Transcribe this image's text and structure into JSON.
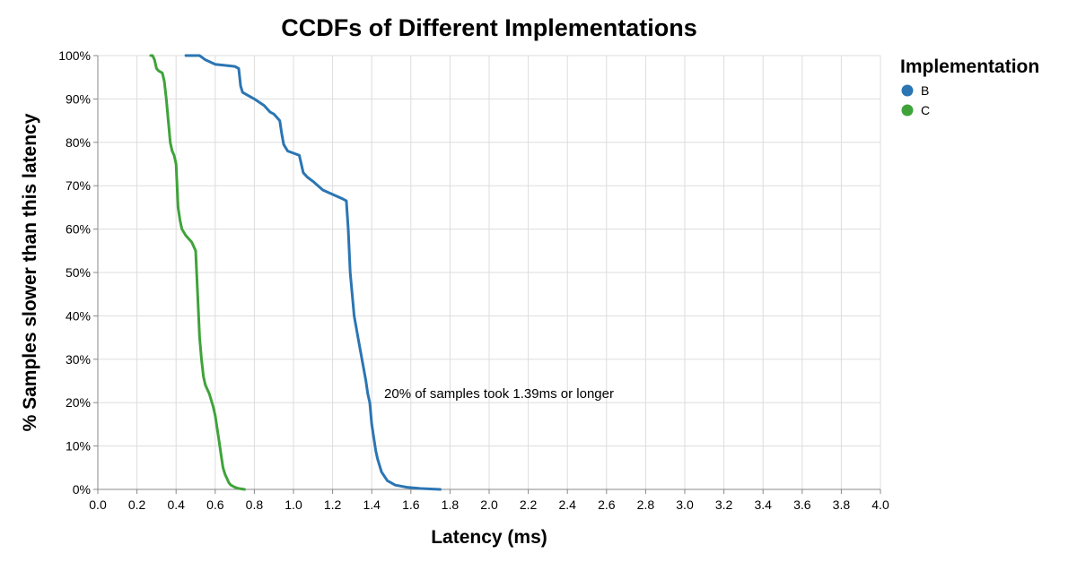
{
  "chart_data": {
    "type": "line",
    "title": "CCDFs of Different Implementations",
    "xlabel": "Latency (ms)",
    "ylabel": "% Samples slower than this latency",
    "xlim": [
      0,
      4.0
    ],
    "ylim": [
      0,
      100
    ],
    "x_ticks": [
      0.0,
      0.2,
      0.4,
      0.6,
      0.8,
      1.0,
      1.2,
      1.4,
      1.6,
      1.8,
      2.0,
      2.2,
      2.4,
      2.6,
      2.8,
      3.0,
      3.2,
      3.4,
      3.6,
      3.8,
      4.0
    ],
    "x_tick_labels": [
      "0.0",
      "0.2",
      "0.4",
      "0.6",
      "0.8",
      "1.0",
      "1.2",
      "1.4",
      "1.6",
      "1.8",
      "2.0",
      "2.2",
      "2.4",
      "2.6",
      "2.8",
      "3.0",
      "3.2",
      "3.4",
      "3.6",
      "3.8",
      "4.0"
    ],
    "y_ticks": [
      0,
      10,
      20,
      30,
      40,
      50,
      60,
      70,
      80,
      90,
      100
    ],
    "y_tick_labels": [
      "0%",
      "10%",
      "20%",
      "30%",
      "40%",
      "50%",
      "60%",
      "70%",
      "80%",
      "90%",
      "100%"
    ],
    "grid": true,
    "legend": {
      "title": "Implementation",
      "position": "right"
    },
    "annotations": [
      {
        "text": "20% of samples took 1.39ms or longer",
        "x": 1.39,
        "y": 20
      }
    ],
    "series": [
      {
        "name": "B",
        "color": "#2b75b3",
        "x": [
          0.45,
          0.48,
          0.52,
          0.55,
          0.6,
          0.7,
          0.72,
          0.73,
          0.74,
          0.76,
          0.8,
          0.85,
          0.88,
          0.9,
          0.91,
          0.93,
          0.94,
          0.95,
          0.97,
          1.0,
          1.03,
          1.04,
          1.05,
          1.07,
          1.1,
          1.15,
          1.2,
          1.25,
          1.27,
          1.28,
          1.29,
          1.3,
          1.31,
          1.33,
          1.35,
          1.37,
          1.38,
          1.39,
          1.4,
          1.41,
          1.42,
          1.43,
          1.45,
          1.48,
          1.52,
          1.58,
          1.65,
          1.75
        ],
        "values": [
          100,
          100,
          100,
          99,
          98,
          97.5,
          97,
          93,
          91.5,
          91,
          90,
          88.5,
          87,
          86.5,
          86,
          85,
          82,
          79.5,
          78,
          77.5,
          77,
          75,
          73,
          72,
          71,
          69,
          68,
          67,
          66.5,
          60,
          50,
          45,
          40,
          35,
          30,
          25,
          22,
          20,
          15,
          12,
          9,
          7,
          4,
          2,
          1,
          0.5,
          0.2,
          0
        ]
      },
      {
        "name": "C",
        "color": "#3fa33a",
        "x": [
          0.27,
          0.28,
          0.29,
          0.3,
          0.31,
          0.33,
          0.34,
          0.35,
          0.36,
          0.37,
          0.38,
          0.39,
          0.4,
          0.41,
          0.42,
          0.43,
          0.45,
          0.48,
          0.5,
          0.51,
          0.52,
          0.53,
          0.54,
          0.55,
          0.57,
          0.59,
          0.6,
          0.61,
          0.62,
          0.63,
          0.64,
          0.65,
          0.66,
          0.67,
          0.68,
          0.7,
          0.72,
          0.75
        ],
        "values": [
          100,
          100,
          99,
          97,
          96.5,
          96,
          94,
          90,
          85,
          80,
          78,
          77,
          75,
          65,
          62,
          60,
          58.5,
          57,
          55,
          45,
          35,
          30,
          26,
          24,
          22,
          19,
          17,
          14,
          11,
          8,
          5,
          3.5,
          2.5,
          1.5,
          1,
          0.5,
          0.2,
          0
        ]
      }
    ]
  }
}
